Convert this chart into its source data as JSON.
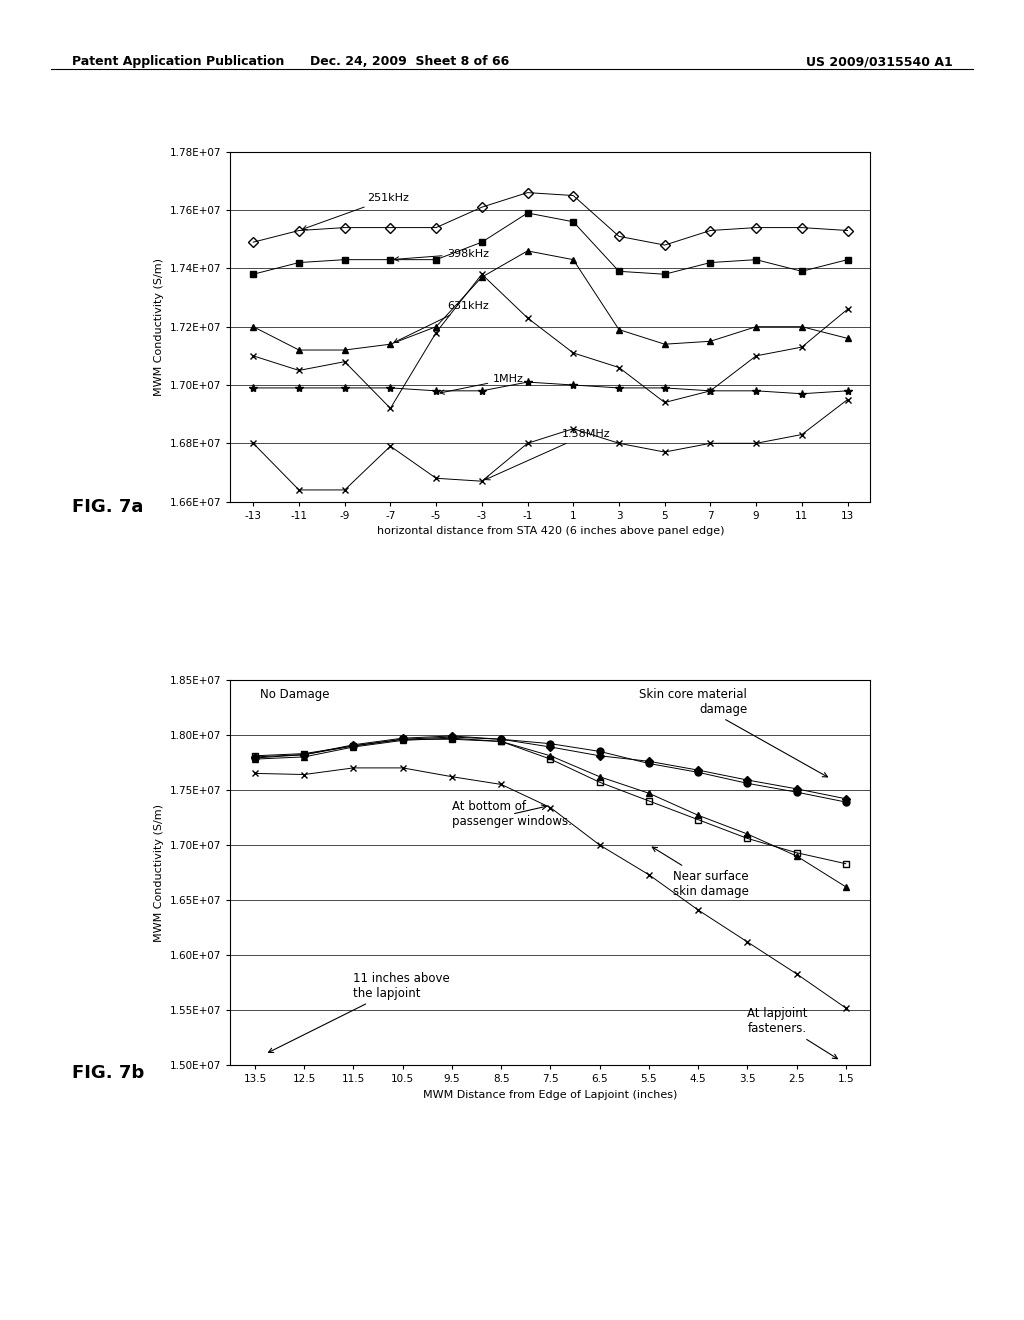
{
  "header_left": "Patent Application Publication",
  "header_mid": "Dec. 24, 2009  Sheet 8 of 66",
  "header_right": "US 2009/0315540 A1",
  "fig7a": {
    "xlabel": "horizontal distance from STA 420 (6 inches above panel edge)",
    "ylabel": "MWM Conductivity (S/m)",
    "xticks": [
      -13,
      -11,
      -9,
      -7,
      -5,
      -3,
      -1,
      1,
      3,
      5,
      7,
      9,
      11,
      13
    ],
    "ylim": [
      16600000.0,
      17800000.0
    ],
    "yticks": [
      16600000.0,
      16800000.0,
      17000000.0,
      17200000.0,
      17400000.0,
      17600000.0,
      17800000.0
    ],
    "ytick_labels": [
      "1.66E+07",
      "1.68E+07",
      "1.70E+07",
      "1.72E+07",
      "1.74E+07",
      "1.76E+07",
      "1.78E+07"
    ],
    "series": {
      "251kHz": {
        "x": [
          -13,
          -11,
          -9,
          -7,
          -5,
          -3,
          -1,
          1,
          3,
          5,
          7,
          9,
          11,
          13
        ],
        "y": [
          17490000.0,
          17530000.0,
          17540000.0,
          17540000.0,
          17540000.0,
          17610000.0,
          17660000.0,
          17650000.0,
          17510000.0,
          17480000.0,
          17530000.0,
          17540000.0,
          17540000.0,
          17530000.0
        ],
        "marker": "D",
        "fillstyle": "none",
        "ms": 5
      },
      "398kHz": {
        "x": [
          -13,
          -11,
          -9,
          -7,
          -5,
          -3,
          -1,
          1,
          3,
          5,
          7,
          9,
          11,
          13
        ],
        "y": [
          17380000.0,
          17420000.0,
          17430000.0,
          17430000.0,
          17430000.0,
          17490000.0,
          17590000.0,
          17560000.0,
          17390000.0,
          17380000.0,
          17420000.0,
          17430000.0,
          17390000.0,
          17430000.0
        ],
        "marker": "s",
        "fillstyle": "full",
        "ms": 5
      },
      "631kHz": {
        "x": [
          -13,
          -11,
          -9,
          -7,
          -5,
          -3,
          -1,
          1,
          3,
          5,
          7,
          9,
          11,
          13
        ],
        "y": [
          17200000.0,
          17120000.0,
          17120000.0,
          17140000.0,
          17200000.0,
          17370000.0,
          17460000.0,
          17430000.0,
          17190000.0,
          17140000.0,
          17150000.0,
          17200000.0,
          17200000.0,
          17160000.0
        ],
        "marker": "^",
        "fillstyle": "full",
        "ms": 5
      },
      "631kHz_x": {
        "x": [
          -13,
          -11,
          -9,
          -7,
          -5,
          -3,
          -1,
          1,
          3,
          5,
          7,
          9,
          11,
          13
        ],
        "y": [
          17100000.0,
          17050000.0,
          17080000.0,
          16920000.0,
          17180000.0,
          17380000.0,
          17230000.0,
          17110000.0,
          17060000.0,
          16940000.0,
          16980000.0,
          17100000.0,
          17130000.0,
          17260000.0
        ],
        "marker": "x",
        "fillstyle": "full",
        "ms": 5
      },
      "1MHz": {
        "x": [
          -13,
          -11,
          -9,
          -7,
          -5,
          -3,
          -1,
          1,
          3,
          5,
          7,
          9,
          11,
          13
        ],
        "y": [
          16990000.0,
          16990000.0,
          16990000.0,
          16990000.0,
          16980000.0,
          16980000.0,
          17010000.0,
          17000000.0,
          16990000.0,
          16990000.0,
          16980000.0,
          16980000.0,
          16970000.0,
          16980000.0
        ],
        "marker": "*",
        "fillstyle": "full",
        "ms": 6
      },
      "1.58MHz": {
        "x": [
          -13,
          -11,
          -9,
          -7,
          -5,
          -3,
          -1,
          1,
          3,
          5,
          7,
          9,
          11,
          13
        ],
        "y": [
          16800000.0,
          16640000.0,
          16640000.0,
          16790000.0,
          16680000.0,
          16670000.0,
          16800000.0,
          16850000.0,
          16800000.0,
          16770000.0,
          16800000.0,
          16800000.0,
          16830000.0,
          16950000.0
        ],
        "marker": "x",
        "fillstyle": "full",
        "ms": 4
      }
    }
  },
  "fig7b": {
    "xlabel": "MWM Distance from Edge of Lapjoint (inches)",
    "ylabel": "MWM Conductivity (S/m)",
    "xticks": [
      13.5,
      12.5,
      11.5,
      10.5,
      9.5,
      8.5,
      7.5,
      6.5,
      5.5,
      4.5,
      3.5,
      2.5,
      1.5
    ],
    "xtick_labels": [
      "13.5",
      "12.5",
      "11.5",
      "10.5",
      "9.5",
      "8.5",
      "7.5",
      "6.5",
      "5.5",
      "4.5",
      "3.5",
      "2.5",
      "1.5"
    ],
    "ylim": [
      15000000.0,
      18500000.0
    ],
    "yticks": [
      15000000.0,
      15500000.0,
      16000000.0,
      16500000.0,
      17000000.0,
      17500000.0,
      18000000.0,
      18500000.0
    ],
    "ytick_labels": [
      "1.50E+07",
      "1.55E+07",
      "1.60E+07",
      "1.65E+07",
      "1.70E+07",
      "1.75E+07",
      "1.80E+07",
      "1.85E+07"
    ],
    "series": {
      "circle_filled": {
        "x": [
          13.5,
          12.5,
          11.5,
          10.5,
          9.5,
          8.5,
          7.5,
          6.5,
          5.5,
          4.5,
          3.5,
          2.5,
          1.5
        ],
        "y": [
          17790000.0,
          17820000.0,
          17900000.0,
          17960000.0,
          17980000.0,
          17960000.0,
          17920000.0,
          17850000.0,
          17740000.0,
          17660000.0,
          17560000.0,
          17480000.0,
          17390000.0
        ],
        "marker": "o",
        "fillstyle": "full",
        "ms": 5
      },
      "triangle_filled": {
        "x": [
          13.5,
          12.5,
          11.5,
          10.5,
          9.5,
          8.5,
          7.5,
          6.5,
          5.5,
          4.5,
          3.5,
          2.5,
          1.5
        ],
        "y": [
          17780000.0,
          17800000.0,
          17890000.0,
          17950000.0,
          17970000.0,
          17940000.0,
          17810000.0,
          17620000.0,
          17470000.0,
          17270000.0,
          17100000.0,
          16900000.0,
          16620000.0
        ],
        "marker": "^",
        "fillstyle": "full",
        "ms": 5
      },
      "square_open": {
        "x": [
          13.5,
          12.5,
          11.5,
          10.5,
          9.5,
          8.5,
          7.5,
          6.5,
          5.5,
          4.5,
          3.5,
          2.5,
          1.5
        ],
        "y": [
          17810000.0,
          17830000.0,
          17900000.0,
          17960000.0,
          17960000.0,
          17940000.0,
          17780000.0,
          17570000.0,
          17400000.0,
          17230000.0,
          17060000.0,
          16930000.0,
          16830000.0
        ],
        "marker": "s",
        "fillstyle": "none",
        "ms": 5
      },
      "diamond_filled": {
        "x": [
          13.5,
          12.5,
          11.5,
          10.5,
          9.5,
          8.5,
          7.5,
          6.5,
          5.5,
          4.5,
          3.5,
          2.5,
          1.5
        ],
        "y": [
          17800000.0,
          17820000.0,
          17910000.0,
          17970000.0,
          17990000.0,
          17960000.0,
          17890000.0,
          17810000.0,
          17760000.0,
          17680000.0,
          17590000.0,
          17510000.0,
          17420000.0
        ],
        "marker": "D",
        "fillstyle": "full",
        "ms": 4
      },
      "x_marker": {
        "x": [
          13.5,
          12.5,
          11.5,
          10.5,
          9.5,
          8.5,
          7.5,
          6.5,
          5.5,
          4.5,
          3.5,
          2.5,
          1.5
        ],
        "y": [
          17650000.0,
          17640000.0,
          17700000.0,
          17700000.0,
          17620000.0,
          17550000.0,
          17340000.0,
          17000000.0,
          16730000.0,
          16410000.0,
          16120000.0,
          15830000.0,
          15520000.0
        ],
        "marker": "x",
        "fillstyle": "full",
        "ms": 5
      }
    }
  },
  "fig_labels": {
    "fig7a": "FIG. 7a",
    "fig7b": "FIG. 7b"
  }
}
